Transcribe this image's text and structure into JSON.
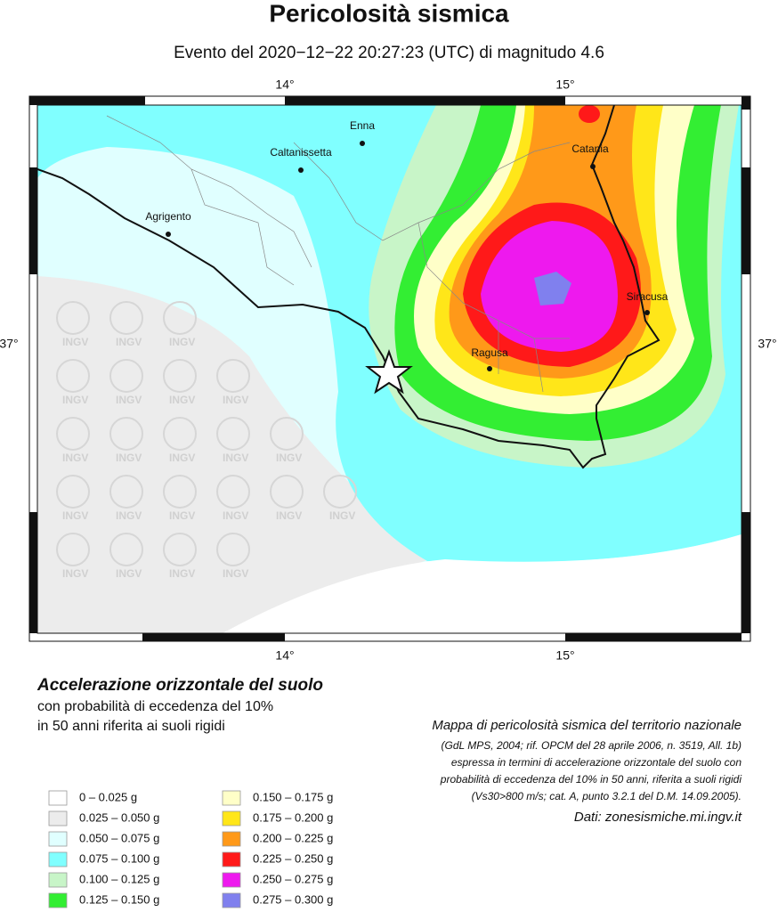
{
  "header": {
    "title": "Pericolosità sismica",
    "subtitle": "Evento del 2020−12−22 20:27:23 (UTC) di magnitudo 4.6"
  },
  "map": {
    "lon_labels": [
      "14°",
      "15°"
    ],
    "lat_labels": [
      "37°"
    ],
    "cities": [
      "Enna",
      "Caltanissetta",
      "Agrigento",
      "Catania",
      "Siracusa",
      "Ragusa"
    ],
    "watermark": "INGV"
  },
  "legend": {
    "title": "Accelerazione orizzontale del suolo",
    "subtitle_lines": [
      "con probabilità di eccedenza del 10%",
      "in 50 anni riferita ai suoli rigidi"
    ],
    "classes": [
      {
        "label": "0 –  0.025 g",
        "color": "#ffffff"
      },
      {
        "label": "0.025 – 0.050 g",
        "color": "#ececec"
      },
      {
        "label": "0.050 – 0.075 g",
        "color": "#e0ffff"
      },
      {
        "label": "0.075 – 0.100 g",
        "color": "#80ffff"
      },
      {
        "label": "0.100 – 0.125 g",
        "color": "#c8f5c8"
      },
      {
        "label": "0.125 – 0.150 g",
        "color": "#33ee33"
      },
      {
        "label": "0.150 – 0.175 g",
        "color": "#ffffc8"
      },
      {
        "label": "0.175 – 0.200 g",
        "color": "#ffe619"
      },
      {
        "label": "0.200 – 0.225 g",
        "color": "#ff9919"
      },
      {
        "label": "0.225 – 0.250 g",
        "color": "#ff1919"
      },
      {
        "label": "0.250 – 0.275 g",
        "color": "#ee19ee"
      },
      {
        "label": "0.275 – 0.300 g",
        "color": "#8080ee"
      }
    ]
  },
  "notes": {
    "title": "Mappa di pericolosità sismica del territorio nazionale",
    "lines": [
      "(GdL MPS, 2004; rif. OPCM del 28 aprile 2006, n. 3519, All. 1b)",
      "espressa in termini di accelerazione orizzontale del suolo con",
      "probabilità di eccedenza del 10% in 50 anni, riferita a suoli rigidi",
      "(Vs30>800 m/s; cat. A, punto 3.2.1 del D.M. 14.09.2005)."
    ],
    "source": "Dati: zonesismiche.mi.ingv.it"
  }
}
